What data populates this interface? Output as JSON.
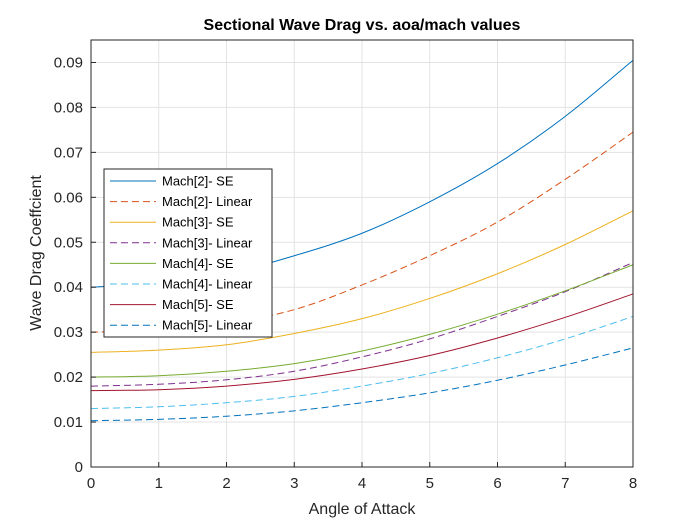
{
  "chart_data": {
    "type": "line",
    "title": "Sectional Wave Drag vs. aoa/mach values",
    "xlabel": "Angle of Attack",
    "ylabel": "Wave Drag Coeffcient",
    "xlim": [
      0,
      8
    ],
    "ylim": [
      0,
      0.095
    ],
    "xticks": [
      "0",
      "1",
      "2",
      "3",
      "4",
      "5",
      "6",
      "7",
      "8"
    ],
    "yticks": [
      "0",
      "0.01",
      "0.02",
      "0.03",
      "0.04",
      "0.05",
      "0.06",
      "0.07",
      "0.08",
      "0.09"
    ],
    "grid": true,
    "legend_position": "left",
    "x": [
      0,
      1,
      2,
      3,
      4,
      5,
      6,
      7,
      8
    ],
    "series": [
      {
        "name": "Mach[2]- SE",
        "color": "#0072BD",
        "dash": "solid",
        "values": [
          0.04,
          0.041,
          0.043,
          0.047,
          0.052,
          0.059,
          0.0675,
          0.078,
          0.0905
        ]
      },
      {
        "name": "Mach[2]- Linear",
        "color": "#D95319",
        "dash": "dashed",
        "values": [
          0.03,
          0.0305,
          0.032,
          0.035,
          0.0405,
          0.047,
          0.0545,
          0.064,
          0.0745
        ]
      },
      {
        "name": "Mach[3]- SE",
        "color": "#EDB120",
        "dash": "solid",
        "values": [
          0.0255,
          0.026,
          0.0272,
          0.0297,
          0.033,
          0.0375,
          0.043,
          0.0495,
          0.057
        ]
      },
      {
        "name": "Mach[3]- Linear",
        "color": "#7E2F8E",
        "dash": "dashed",
        "values": [
          0.018,
          0.0184,
          0.0194,
          0.0213,
          0.0245,
          0.0285,
          0.0335,
          0.039,
          0.0455
        ]
      },
      {
        "name": "Mach[4]- SE",
        "color": "#77AC30",
        "dash": "solid",
        "values": [
          0.02,
          0.0203,
          0.0213,
          0.023,
          0.0258,
          0.0295,
          0.034,
          0.0392,
          0.045
        ]
      },
      {
        "name": "Mach[4]- Linear",
        "color": "#4DBEEE",
        "dash": "dashed",
        "values": [
          0.013,
          0.0134,
          0.0143,
          0.0157,
          0.018,
          0.0208,
          0.0243,
          0.0285,
          0.0335
        ]
      },
      {
        "name": "Mach[5]- SE",
        "color": "#A2142F",
        "dash": "solid",
        "values": [
          0.017,
          0.0172,
          0.018,
          0.0195,
          0.0218,
          0.0248,
          0.0287,
          0.0333,
          0.0385
        ]
      },
      {
        "name": "Mach[5]- Linear",
        "color": "#0072BD",
        "dash": "dashed",
        "values": [
          0.0103,
          0.0106,
          0.0113,
          0.0125,
          0.0143,
          0.0165,
          0.0193,
          0.0227,
          0.0265
        ]
      }
    ]
  }
}
